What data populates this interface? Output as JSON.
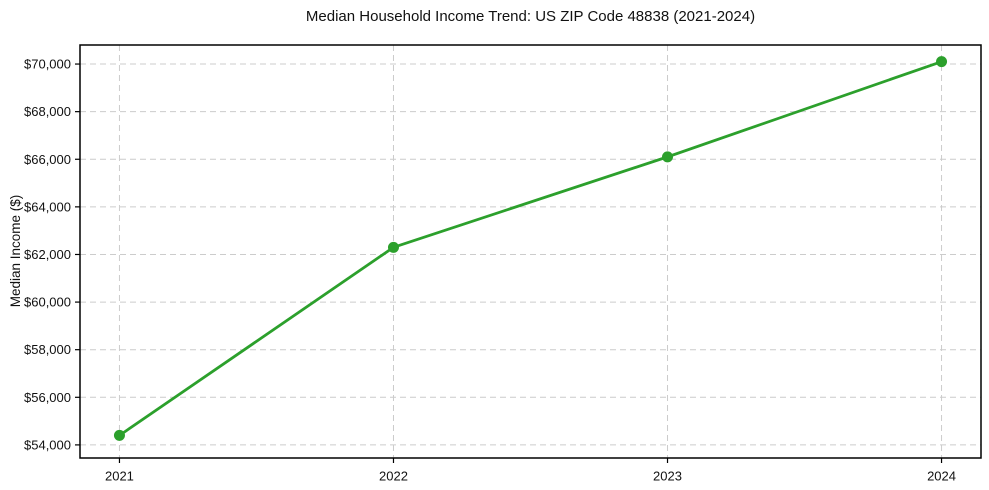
{
  "page": {
    "background": "#ffffff"
  },
  "chart_data": {
    "type": "line",
    "title": "Median Household Income Trend: US ZIP Code 48838 (2021-2024)",
    "xlabel": "",
    "ylabel": "Median Income ($)",
    "x": [
      2021,
      2022,
      2023,
      2024
    ],
    "xtick_labels": [
      "2021",
      "2022",
      "2023",
      "2024"
    ],
    "series": [
      {
        "name": "Median Household Income",
        "values": [
          54400,
          62300,
          66100,
          70100
        ]
      }
    ],
    "ytick_values": [
      54000,
      56000,
      58000,
      60000,
      62000,
      64000,
      66000,
      68000,
      70000
    ],
    "ytick_labels": [
      "$54,000",
      "$56,000",
      "$58,000",
      "$60,000",
      "$62,000",
      "$64,000",
      "$66,000",
      "$68,000",
      "$70,000"
    ],
    "ylim": [
      53450,
      70800
    ],
    "x_margin": 0.144,
    "grid": true,
    "legend": "none",
    "line_color": "#2ca02c",
    "marker": "circle",
    "grid_color": "#cccccc",
    "spine_color": "#000000",
    "tick_color": "#000000"
  }
}
